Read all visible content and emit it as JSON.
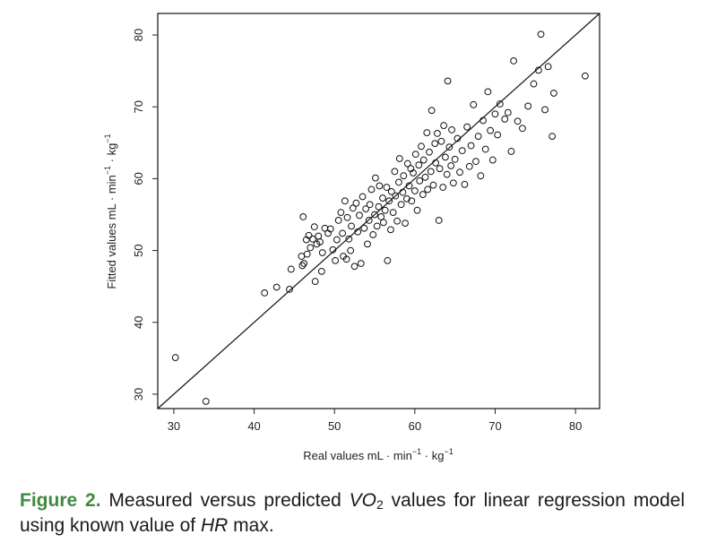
{
  "chart_data": {
    "type": "scatter",
    "title": "",
    "xlabel": {
      "main": "Real values mL · min",
      "sup1": "−1",
      "mid": " · kg",
      "sup2": "−1"
    },
    "ylabel": {
      "main": "Fitted values mL · min",
      "sup1": "−1",
      "mid": " · kg",
      "sup2": "−1"
    },
    "xlim": [
      28,
      83
    ],
    "ylim": [
      28,
      83
    ],
    "xticks": [
      30,
      40,
      50,
      60,
      70,
      80
    ],
    "yticks": [
      30,
      40,
      50,
      60,
      70,
      80
    ],
    "grid": false,
    "reference_line": {
      "type": "identity",
      "slope": 1,
      "intercept": 0
    },
    "marker": "open-circle",
    "points": [
      [
        30.2,
        35.1
      ],
      [
        34.0,
        29.0
      ],
      [
        41.3,
        44.1
      ],
      [
        42.8,
        44.9
      ],
      [
        44.4,
        44.6
      ],
      [
        44.6,
        47.4
      ],
      [
        45.9,
        49.2
      ],
      [
        46.0,
        47.9
      ],
      [
        46.1,
        54.7
      ],
      [
        46.2,
        48.2
      ],
      [
        46.5,
        51.5
      ],
      [
        46.6,
        49.5
      ],
      [
        46.8,
        52.1
      ],
      [
        47.0,
        50.4
      ],
      [
        47.3,
        51.6
      ],
      [
        47.5,
        53.3
      ],
      [
        47.6,
        45.7
      ],
      [
        47.8,
        50.9
      ],
      [
        48.0,
        52.0
      ],
      [
        48.2,
        51.2
      ],
      [
        48.4,
        47.1
      ],
      [
        48.5,
        49.7
      ],
      [
        48.8,
        53.1
      ],
      [
        49.2,
        52.4
      ],
      [
        49.5,
        53.0
      ],
      [
        49.8,
        50.1
      ],
      [
        50.1,
        48.6
      ],
      [
        50.3,
        51.5
      ],
      [
        50.5,
        54.2
      ],
      [
        50.8,
        55.3
      ],
      [
        51.0,
        52.4
      ],
      [
        51.1,
        49.2
      ],
      [
        51.3,
        56.9
      ],
      [
        51.5,
        48.8
      ],
      [
        51.6,
        54.6
      ],
      [
        51.8,
        51.6
      ],
      [
        52.0,
        50.0
      ],
      [
        52.1,
        53.4
      ],
      [
        52.3,
        55.9
      ],
      [
        52.5,
        47.8
      ],
      [
        52.7,
        56.6
      ],
      [
        52.9,
        52.6
      ],
      [
        53.1,
        54.9
      ],
      [
        53.3,
        48.2
      ],
      [
        53.5,
        57.5
      ],
      [
        53.7,
        53.1
      ],
      [
        53.9,
        55.8
      ],
      [
        54.1,
        50.9
      ],
      [
        54.3,
        54.2
      ],
      [
        54.4,
        56.4
      ],
      [
        54.6,
        58.5
      ],
      [
        54.8,
        52.2
      ],
      [
        55.0,
        55.0
      ],
      [
        55.1,
        60.1
      ],
      [
        55.3,
        53.4
      ],
      [
        55.5,
        56.1
      ],
      [
        55.6,
        59.0
      ],
      [
        55.8,
        54.7
      ],
      [
        56.0,
        57.3
      ],
      [
        56.1,
        53.9
      ],
      [
        56.3,
        55.6
      ],
      [
        56.5,
        58.8
      ],
      [
        56.6,
        48.6
      ],
      [
        56.8,
        56.9
      ],
      [
        57.0,
        52.9
      ],
      [
        57.1,
        58.2
      ],
      [
        57.3,
        55.3
      ],
      [
        57.5,
        61.0
      ],
      [
        57.6,
        57.6
      ],
      [
        57.8,
        54.1
      ],
      [
        58.0,
        59.5
      ],
      [
        58.1,
        62.8
      ],
      [
        58.3,
        56.4
      ],
      [
        58.5,
        58.1
      ],
      [
        58.6,
        60.4
      ],
      [
        58.8,
        53.8
      ],
      [
        59.0,
        57.2
      ],
      [
        59.1,
        62.1
      ],
      [
        59.3,
        59.0
      ],
      [
        59.5,
        61.4
      ],
      [
        59.6,
        56.9
      ],
      [
        59.8,
        60.8
      ],
      [
        60.0,
        58.3
      ],
      [
        60.1,
        63.4
      ],
      [
        60.3,
        55.6
      ],
      [
        60.5,
        61.9
      ],
      [
        60.6,
        59.7
      ],
      [
        60.8,
        64.5
      ],
      [
        61.0,
        57.8
      ],
      [
        61.1,
        62.6
      ],
      [
        61.3,
        60.2
      ],
      [
        61.5,
        66.4
      ],
      [
        61.6,
        58.5
      ],
      [
        61.8,
        63.7
      ],
      [
        62.0,
        61.0
      ],
      [
        62.1,
        69.5
      ],
      [
        62.3,
        59.1
      ],
      [
        62.5,
        64.9
      ],
      [
        62.6,
        62.2
      ],
      [
        62.8,
        66.3
      ],
      [
        63.0,
        54.2
      ],
      [
        63.1,
        61.4
      ],
      [
        63.3,
        65.2
      ],
      [
        63.5,
        58.8
      ],
      [
        63.6,
        67.4
      ],
      [
        63.8,
        63.0
      ],
      [
        64.0,
        60.6
      ],
      [
        64.1,
        73.6
      ],
      [
        64.3,
        64.4
      ],
      [
        64.5,
        61.8
      ],
      [
        64.6,
        66.8
      ],
      [
        64.8,
        59.4
      ],
      [
        65.0,
        62.7
      ],
      [
        65.3,
        65.6
      ],
      [
        65.6,
        60.9
      ],
      [
        65.9,
        63.9
      ],
      [
        66.2,
        59.2
      ],
      [
        66.5,
        67.2
      ],
      [
        66.8,
        61.7
      ],
      [
        67.0,
        64.6
      ],
      [
        67.3,
        70.3
      ],
      [
        67.6,
        62.4
      ],
      [
        67.9,
        65.9
      ],
      [
        68.2,
        60.4
      ],
      [
        68.5,
        68.1
      ],
      [
        68.8,
        64.1
      ],
      [
        69.1,
        72.1
      ],
      [
        69.4,
        66.7
      ],
      [
        69.7,
        62.6
      ],
      [
        70.0,
        69.0
      ],
      [
        70.3,
        66.1
      ],
      [
        70.6,
        70.4
      ],
      [
        71.2,
        68.3
      ],
      [
        71.6,
        69.2
      ],
      [
        72.0,
        63.8
      ],
      [
        72.3,
        76.4
      ],
      [
        72.8,
        68.0
      ],
      [
        73.4,
        67.0
      ],
      [
        74.1,
        70.1
      ],
      [
        74.8,
        73.2
      ],
      [
        75.4,
        75.1
      ],
      [
        75.7,
        80.1
      ],
      [
        76.2,
        69.6
      ],
      [
        76.6,
        75.6
      ],
      [
        77.1,
        65.9
      ],
      [
        77.3,
        71.9
      ],
      [
        81.2,
        74.3
      ]
    ]
  },
  "caption": {
    "label": "Figure 2.",
    "text1": " Measured versus predicted ",
    "vo": "VO",
    "sub": "2",
    "text2": " values for linear regression model using known value of ",
    "hr": "HR",
    "text3": " max."
  }
}
